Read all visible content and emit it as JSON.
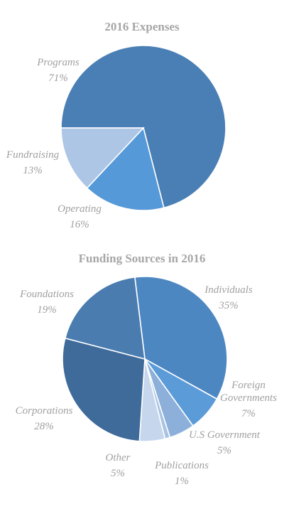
{
  "chart_data": [
    {
      "type": "pie",
      "title": "2016 Expenses",
      "slices": [
        {
          "label": "Programs",
          "value": 71,
          "pct_text": "71%",
          "color": "#4a7fb5"
        },
        {
          "label": "Operating",
          "value": 16,
          "pct_text": "16%",
          "color": "#5599d8"
        },
        {
          "label": "Fundraising",
          "value": 13,
          "pct_text": "13%",
          "color": "#adc6e6"
        }
      ]
    },
    {
      "type": "pie",
      "title": "Funding Sources in 2016",
      "slices": [
        {
          "label": "Individuals",
          "value": 35,
          "pct_text": "35%",
          "color": "#4d87c2"
        },
        {
          "label": "Foreign Governments",
          "label_lines": [
            "Foreign",
            "Governments"
          ],
          "value": 7,
          "pct_text": "7%",
          "color": "#5b9bd8"
        },
        {
          "label": "U.S Government",
          "value": 5,
          "pct_text": "5%",
          "color": "#8db0da"
        },
        {
          "label": "Publications",
          "value": 1,
          "pct_text": "1%",
          "color": "#a9c3e3"
        },
        {
          "label": "Other",
          "value": 5,
          "pct_text": "5%",
          "color": "#c6d7ed"
        },
        {
          "label": "Corporations",
          "value": 28,
          "pct_text": "28%",
          "color": "#3f6b9a"
        },
        {
          "label": "Foundations",
          "value": 19,
          "pct_text": "19%",
          "color": "#4a7cb0"
        }
      ]
    }
  ]
}
